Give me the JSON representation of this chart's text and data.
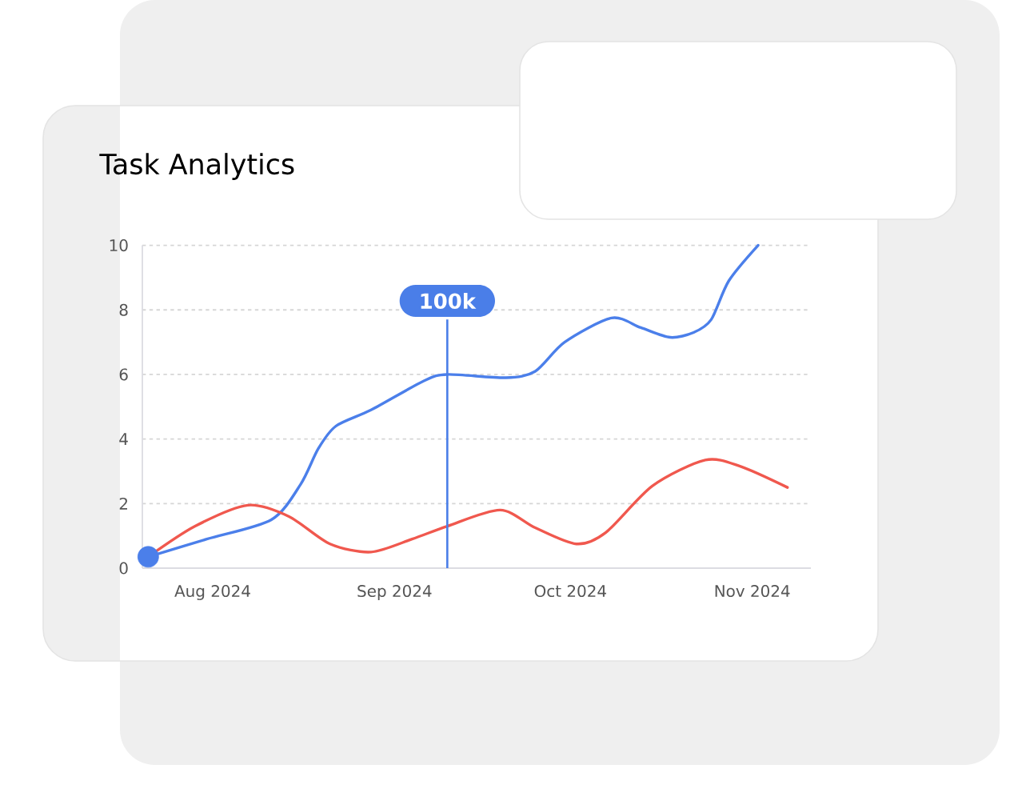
{
  "chart_data": {
    "type": "line",
    "title": "Task Analytics",
    "series": [
      {
        "color": "#4b7fea",
        "x": [
          "2024-07-21",
          "2024-07-31",
          "2024-08-11",
          "2024-08-16",
          "2024-08-19",
          "2024-08-22",
          "2024-08-28",
          "2024-09-06",
          "2024-09-10",
          "2024-09-20",
          "2024-09-25",
          "2024-09-30",
          "2024-10-08",
          "2024-10-13",
          "2024-10-18",
          "2024-10-22",
          "2024-10-25",
          "2024-10-28",
          "2024-11-02"
        ],
        "values": [
          0.35,
          0.9,
          1.5,
          2.6,
          3.7,
          4.4,
          4.9,
          5.8,
          6.0,
          5.9,
          6.1,
          7.0,
          7.75,
          7.45,
          7.15,
          7.3,
          7.7,
          8.9,
          10
        ]
      },
      {
        "color": "#f0584e",
        "x": [
          "2024-07-21",
          "2024-07-29",
          "2024-08-07",
          "2024-08-14",
          "2024-08-21",
          "2024-08-28",
          "2024-09-04",
          "2024-09-10",
          "2024-09-19",
          "2024-09-25",
          "2024-10-02",
          "2024-10-07",
          "2024-10-15",
          "2024-10-24",
          "2024-10-30",
          "2024-11-07"
        ],
        "values": [
          0.35,
          1.3,
          1.95,
          1.6,
          0.75,
          0.5,
          0.9,
          1.3,
          1.8,
          1.25,
          0.75,
          1.1,
          2.55,
          3.35,
          3.15,
          2.5
        ]
      },
      {
        "type": "scatter",
        "color": "#4b7fea",
        "marker": "circle",
        "x": [
          "2024-07-21"
        ],
        "values": [
          0.35
        ]
      }
    ],
    "xlim": [
      "2024-07-20",
      "2024-11-11"
    ],
    "xticks": [
      {
        "value": "2024-08-01",
        "label": "Aug 2024"
      },
      {
        "value": "2024-09-01",
        "label": "Sep 2024"
      },
      {
        "value": "2024-10-01",
        "label": "Oct 2024"
      },
      {
        "value": "2024-11-01",
        "label": "Nov 2024"
      }
    ],
    "ylim": [
      0,
      10
    ],
    "yticks": [
      0,
      2,
      4,
      6,
      8,
      10
    ],
    "grid": "y",
    "marker": "none",
    "ref_lines": [
      {
        "axis": "x",
        "value": "2024-09-10",
        "label": "100k",
        "color": "#4a7ee8"
      }
    ]
  }
}
